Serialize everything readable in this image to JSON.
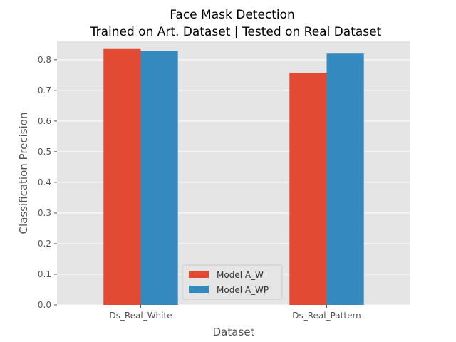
{
  "chart_data": {
    "type": "bar",
    "title": "Face Mask Detection",
    "subtitle": "Trained on Art. Dataset | Tested on Real Dataset",
    "xlabel": "Dataset",
    "ylabel": "Classification Precision",
    "categories": [
      "Ds_Real_White",
      "Ds_Real_Pattern"
    ],
    "series": [
      {
        "name": "Model A_W",
        "values": [
          0.835,
          0.757
        ],
        "color": "#E24A33"
      },
      {
        "name": "Model A_WP",
        "values": [
          0.828,
          0.82
        ],
        "color": "#348ABD"
      }
    ],
    "ylim": [
      0,
      0.86
    ],
    "yticks": [
      "0.0",
      "0.1",
      "0.2",
      "0.3",
      "0.4",
      "0.5",
      "0.6",
      "0.7",
      "0.8"
    ],
    "grid": true,
    "legend_position": "bottom-center",
    "background": "#E5E5E5"
  }
}
